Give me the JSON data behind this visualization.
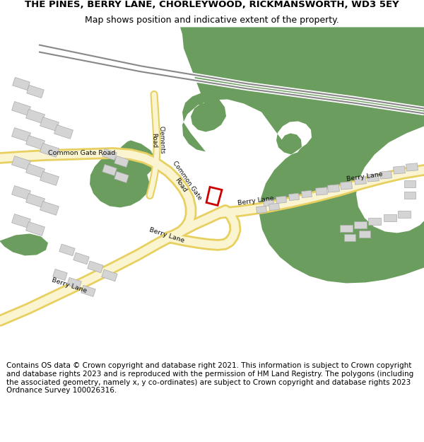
{
  "title": "THE PINES, BERRY LANE, CHORLEYWOOD, RICKMANSWORTH, WD3 5EY",
  "subtitle": "Map shows position and indicative extent of the property.",
  "footer": "Contains OS data © Crown copyright and database right 2021. This information is subject to Crown copyright and database rights 2023 and is reproduced with the permission of HM Land Registry. The polygons (including the associated geometry, namely x, y co-ordinates) are subject to Crown copyright and database rights 2023 Ordnance Survey 100026316.",
  "map_bg": "#f2f0e8",
  "green": "#6b9e5e",
  "road_fill": "#faf5d0",
  "road_border": "#e8d060",
  "building": "#d4d4d4",
  "building_edge": "#aaaaaa",
  "red": "#cc0000",
  "railway_gray": "#999999",
  "title_fontsize": 9.5,
  "subtitle_fontsize": 9.0,
  "footer_fontsize": 7.5
}
